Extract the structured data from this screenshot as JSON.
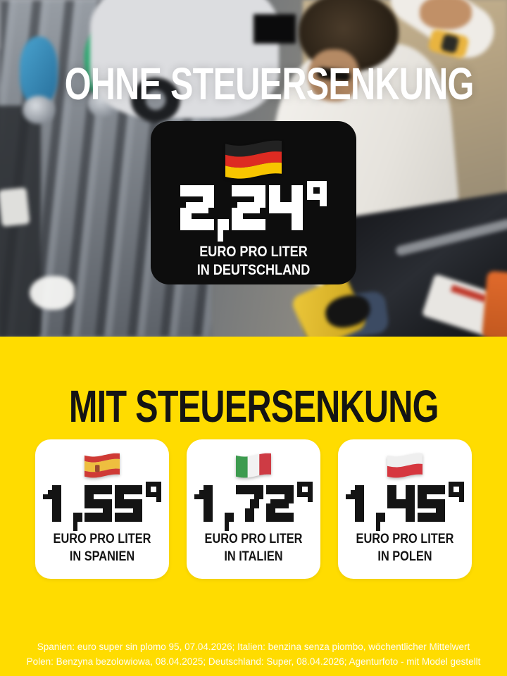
{
  "colors": {
    "yellow_background": "#ffdc00",
    "card_black": "#0d0d0d",
    "card_white": "#ffffff",
    "headline_white": "#ffffff",
    "headline_black": "#141414"
  },
  "top_section": {
    "headline": "OHNE STEUERSENKUNG",
    "card": {
      "flag": {
        "name": "germany-flag",
        "orientation": "horizontal",
        "colors": [
          "#222222",
          "#dd2b22",
          "#f7c500"
        ]
      },
      "price_main": "2,24",
      "price_sup": "9",
      "label_line1": "EURO PRO LITER",
      "label_line2": "IN DEUTSCHLAND"
    }
  },
  "bottom_section": {
    "headline": "MIT STEUERSENKUNG",
    "cards": [
      {
        "flag": {
          "name": "spain-flag",
          "orientation": "horizontal",
          "colors": [
            "#cf3a35",
            "#eebe3f",
            "#cf3a35"
          ],
          "fractions": [
            0.27,
            0.46,
            0.27
          ],
          "emblem": true
        },
        "price_main": "1,55",
        "price_sup": "9",
        "label_line1": "EURO PRO LITER",
        "label_line2": "IN SPANIEN"
      },
      {
        "flag": {
          "name": "italy-flag",
          "orientation": "vertical",
          "colors": [
            "#3d9b4f",
            "#f2f2f2",
            "#ce3b44"
          ]
        },
        "price_main": "1,72",
        "price_sup": "9",
        "label_line1": "EURO PRO LITER",
        "label_line2": "IN ITALIEN"
      },
      {
        "flag": {
          "name": "poland-flag",
          "orientation": "horizontal",
          "colors": [
            "#efefef",
            "#d6373f"
          ]
        },
        "price_main": "1,45",
        "price_sup": "9",
        "label_line1": "EURO PRO LITER",
        "label_line2": "IN POLEN"
      }
    ],
    "footnote_line1": "Spanien: euro super sin plomo 95, 07.04.2026; Italien: benzina senza piombo, wöchentlicher Mittelwert",
    "footnote_line2": "Polen: Benzyna bezolowiowa, 08.04.2025; Deutschland: Super, 08.04.2026; Agenturfoto - mit Model gestellt"
  }
}
